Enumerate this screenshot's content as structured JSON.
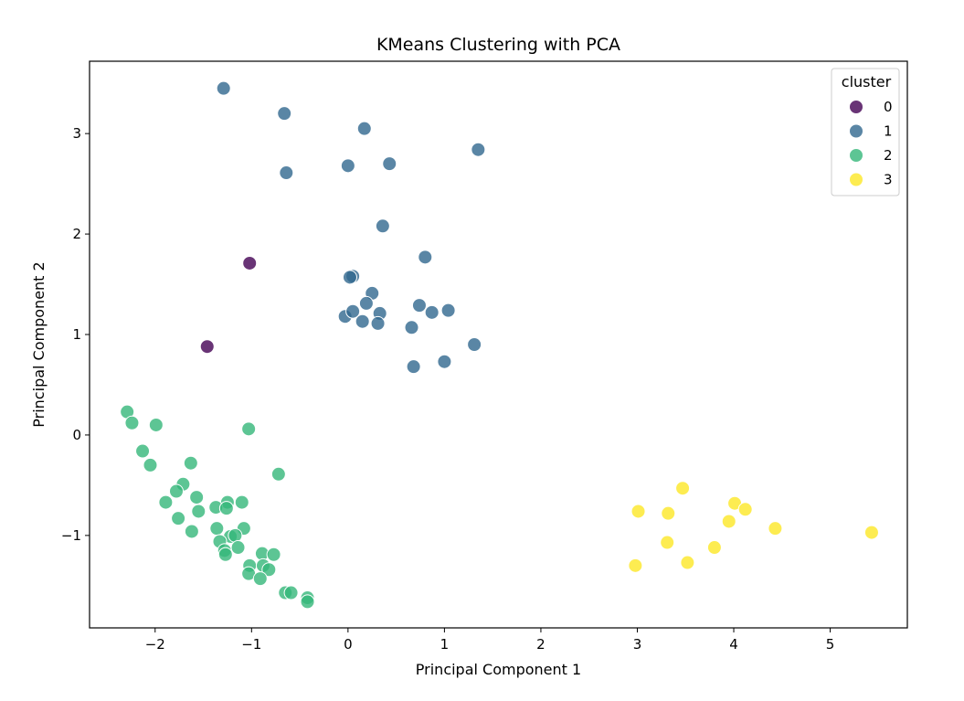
{
  "chart_data": {
    "type": "scatter",
    "title": "KMeans Clustering with PCA",
    "xlabel": "Principal Component 1",
    "ylabel": "Principal Component 2",
    "xlim": [
      -2.68,
      5.8
    ],
    "ylim": [
      -1.92,
      3.72
    ],
    "xticks": [
      -2,
      -1,
      0,
      1,
      2,
      3,
      4,
      5
    ],
    "yticks": [
      -1,
      0,
      1,
      2,
      3
    ],
    "grid": false,
    "legend": {
      "title": "cluster",
      "position": "top-right"
    },
    "series": [
      {
        "name": "0",
        "color": "#440154",
        "points": [
          [
            -1.02,
            1.71
          ],
          [
            -1.46,
            0.88
          ]
        ]
      },
      {
        "name": "1",
        "color": "#31688e",
        "points": [
          [
            -1.29,
            3.45
          ],
          [
            -0.66,
            3.2
          ],
          [
            0.17,
            3.05
          ],
          [
            1.35,
            2.84
          ],
          [
            0.0,
            2.68
          ],
          [
            0.43,
            2.7
          ],
          [
            -0.64,
            2.61
          ],
          [
            0.36,
            2.08
          ],
          [
            0.8,
            1.77
          ],
          [
            0.05,
            1.58
          ],
          [
            0.02,
            1.57
          ],
          [
            0.25,
            1.41
          ],
          [
            0.19,
            1.31
          ],
          [
            0.74,
            1.29
          ],
          [
            0.87,
            1.22
          ],
          [
            1.04,
            1.24
          ],
          [
            -0.03,
            1.18
          ],
          [
            0.05,
            1.23
          ],
          [
            0.33,
            1.21
          ],
          [
            0.15,
            1.13
          ],
          [
            0.31,
            1.11
          ],
          [
            0.66,
            1.07
          ],
          [
            1.31,
            0.9
          ],
          [
            0.68,
            0.68
          ],
          [
            1.0,
            0.73
          ]
        ]
      },
      {
        "name": "2",
        "color": "#35b779",
        "points": [
          [
            -2.29,
            0.23
          ],
          [
            -2.24,
            0.12
          ],
          [
            -1.99,
            0.1
          ],
          [
            -1.03,
            0.06
          ],
          [
            -2.13,
            -0.16
          ],
          [
            -2.05,
            -0.3
          ],
          [
            -1.63,
            -0.28
          ],
          [
            -0.72,
            -0.39
          ],
          [
            -1.71,
            -0.49
          ],
          [
            -1.78,
            -0.56
          ],
          [
            -1.57,
            -0.62
          ],
          [
            -1.89,
            -0.67
          ],
          [
            -1.25,
            -0.67
          ],
          [
            -1.1,
            -0.67
          ],
          [
            -1.37,
            -0.72
          ],
          [
            -1.26,
            -0.73
          ],
          [
            -1.55,
            -0.76
          ],
          [
            -1.76,
            -0.83
          ],
          [
            -1.62,
            -0.96
          ],
          [
            -1.36,
            -0.93
          ],
          [
            -1.08,
            -0.93
          ],
          [
            -1.22,
            -1.01
          ],
          [
            -1.17,
            -1.0
          ],
          [
            -1.33,
            -1.06
          ],
          [
            -1.14,
            -1.12
          ],
          [
            -1.28,
            -1.15
          ],
          [
            -1.27,
            -1.19
          ],
          [
            -0.89,
            -1.18
          ],
          [
            -0.77,
            -1.19
          ],
          [
            -1.02,
            -1.3
          ],
          [
            -0.88,
            -1.3
          ],
          [
            -0.82,
            -1.34
          ],
          [
            -1.03,
            -1.38
          ],
          [
            -0.91,
            -1.43
          ],
          [
            -0.65,
            -1.57
          ],
          [
            -0.59,
            -1.57
          ],
          [
            -0.42,
            -1.62
          ],
          [
            -0.42,
            -1.66
          ]
        ]
      },
      {
        "name": "3",
        "color": "#fde725",
        "points": [
          [
            3.47,
            -0.53
          ],
          [
            4.01,
            -0.68
          ],
          [
            4.12,
            -0.74
          ],
          [
            3.01,
            -0.76
          ],
          [
            3.32,
            -0.78
          ],
          [
            3.95,
            -0.86
          ],
          [
            4.43,
            -0.93
          ],
          [
            5.43,
            -0.97
          ],
          [
            3.31,
            -1.07
          ],
          [
            3.8,
            -1.12
          ],
          [
            3.52,
            -1.27
          ],
          [
            2.98,
            -1.3
          ]
        ]
      }
    ]
  }
}
